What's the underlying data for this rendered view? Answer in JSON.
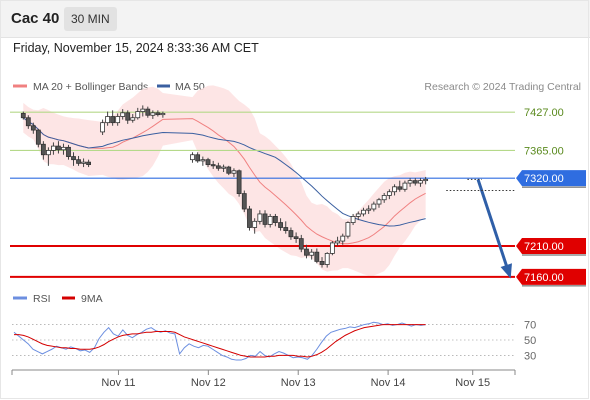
{
  "header": {
    "instrument": "Cac 40",
    "interval": "30 MIN",
    "datetime": "Friday, November 15, 2024 8:33:36 AM CET"
  },
  "colors": {
    "bollinger": "#f08080",
    "bollinger_fill": "#fde0e0",
    "ma50": "#3a5fa0",
    "resistance": "#b5d98a",
    "pivot": "#2f6de0",
    "support": "#e00000",
    "arrow": "#2f5fa8",
    "rsi": "#6c8fe0",
    "ma9": "#d40000"
  },
  "chart_data": [
    {
      "type": "candlestick",
      "legend": [
        {
          "label": "MA 20 + Bollinger Bands",
          "color": "#f08080"
        },
        {
          "label": "MA 50",
          "color": "#3a5fa0"
        }
      ],
      "source": "Research © 2024 Trading Central",
      "ylim": [
        7150,
        7450
      ],
      "x_ticks": [
        {
          "label": "Nov 11",
          "index": 19
        },
        {
          "label": "Nov 12",
          "index": 36
        },
        {
          "label": "Nov 13",
          "index": 53
        },
        {
          "label": "Nov 14",
          "index": 70
        },
        {
          "label": "Nov 15",
          "index": 86
        }
      ],
      "candles": [
        [
          7425,
          7428,
          7415,
          7418
        ],
        [
          7418,
          7422,
          7400,
          7405
        ],
        [
          7405,
          7410,
          7392,
          7398
        ],
        [
          7398,
          7400,
          7370,
          7375
        ],
        [
          7375,
          7380,
          7350,
          7358
        ],
        [
          7358,
          7370,
          7340,
          7365
        ],
        [
          7365,
          7378,
          7358,
          7372
        ],
        [
          7372,
          7380,
          7360,
          7366
        ],
        [
          7366,
          7376,
          7358,
          7370
        ],
        [
          7370,
          7374,
          7350,
          7355
        ],
        [
          7355,
          7362,
          7340,
          7350
        ],
        [
          7350,
          7356,
          7340,
          7344
        ],
        [
          7344,
          7352,
          7338,
          7346
        ],
        [
          7346,
          7350,
          7338,
          7342
        ],
        [
          7395,
          7415,
          7390,
          7410
        ],
        [
          7410,
          7428,
          7405,
          7420
        ],
        [
          7420,
          7430,
          7405,
          7410
        ],
        [
          7410,
          7425,
          7405,
          7420
        ],
        [
          7420,
          7432,
          7415,
          7426
        ],
        [
          7426,
          7430,
          7408,
          7414
        ],
        [
          7414,
          7424,
          7410,
          7418
        ],
        [
          7418,
          7434,
          7415,
          7428
        ],
        [
          7428,
          7438,
          7420,
          7432
        ],
        [
          7432,
          7436,
          7418,
          7422
        ],
        [
          7422,
          7430,
          7416,
          7426
        ],
        [
          7426,
          7430,
          7420,
          7423
        ],
        [
          7423,
          7428,
          7418,
          7425
        ],
        [
          7350,
          7362,
          7345,
          7358
        ],
        [
          7358,
          7362,
          7345,
          7348
        ],
        [
          7348,
          7355,
          7340,
          7350
        ],
        [
          7350,
          7353,
          7338,
          7342
        ],
        [
          7342,
          7348,
          7335,
          7340
        ],
        [
          7340,
          7345,
          7332,
          7336
        ],
        [
          7336,
          7342,
          7330,
          7338
        ],
        [
          7338,
          7340,
          7325,
          7328
        ],
        [
          7328,
          7336,
          7322,
          7332
        ],
        [
          7332,
          7334,
          7290,
          7295
        ],
        [
          7295,
          7300,
          7265,
          7270
        ],
        [
          7270,
          7275,
          7235,
          7240
        ],
        [
          7240,
          7255,
          7230,
          7250
        ],
        [
          7250,
          7268,
          7245,
          7262
        ],
        [
          7262,
          7268,
          7240,
          7245
        ],
        [
          7245,
          7262,
          7240,
          7258
        ],
        [
          7258,
          7262,
          7242,
          7248
        ],
        [
          7248,
          7255,
          7235,
          7240
        ],
        [
          7240,
          7250,
          7230,
          7235
        ],
        [
          7235,
          7240,
          7220,
          7225
        ],
        [
          7225,
          7232,
          7215,
          7222
        ],
        [
          7222,
          7228,
          7200,
          7205
        ],
        [
          7205,
          7212,
          7190,
          7195
        ],
        [
          7195,
          7205,
          7188,
          7200
        ],
        [
          7200,
          7206,
          7182,
          7185
        ],
        [
          7185,
          7192,
          7175,
          7180
        ],
        [
          7180,
          7200,
          7175,
          7198
        ],
        [
          7198,
          7218,
          7195,
          7215
        ],
        [
          7215,
          7225,
          7210,
          7218
        ],
        [
          7218,
          7230,
          7212,
          7226
        ],
        [
          7226,
          7250,
          7222,
          7248
        ],
        [
          7248,
          7262,
          7244,
          7258
        ],
        [
          7258,
          7266,
          7252,
          7262
        ],
        [
          7262,
          7272,
          7258,
          7268
        ],
        [
          7268,
          7276,
          7262,
          7270
        ],
        [
          7270,
          7282,
          7266,
          7278
        ],
        [
          7278,
          7288,
          7272,
          7285
        ],
        [
          7285,
          7296,
          7280,
          7292
        ],
        [
          7292,
          7302,
          7286,
          7298
        ],
        [
          7298,
          7310,
          7292,
          7306
        ],
        [
          7306,
          7316,
          7298,
          7302
        ],
        [
          7302,
          7316,
          7298,
          7312
        ],
        [
          7312,
          7320,
          7306,
          7316
        ],
        [
          7316,
          7320,
          7308,
          7312
        ],
        [
          7312,
          7320,
          7306,
          7316
        ],
        [
          7316,
          7322,
          7310,
          7318
        ]
      ],
      "levels": [
        {
          "label": "7427.00",
          "value": 7427,
          "kind": "resistance"
        },
        {
          "label": "7365.00",
          "value": 7365,
          "kind": "resistance"
        },
        {
          "label": "7320.00",
          "value": 7320,
          "kind": "pivot"
        },
        {
          "label": "7210.00",
          "value": 7210,
          "kind": "support"
        },
        {
          "label": "7160.00",
          "value": 7160,
          "kind": "support"
        }
      ],
      "projection": {
        "from_index": 87,
        "from_value": 7318,
        "to_index": 93,
        "to_value": 7162,
        "dotted_to_index": 94,
        "dotted_value": 7300
      }
    },
    {
      "type": "line",
      "legend": [
        {
          "label": "RSI",
          "color": "#6c8fe0"
        },
        {
          "label": "9MA",
          "color": "#d40000"
        }
      ],
      "ylim": [
        15,
        85
      ],
      "y_ticks": [
        "70",
        "50",
        "30"
      ],
      "series": [
        {
          "name": "RSI",
          "values": [
            60,
            55,
            50,
            45,
            38,
            35,
            32,
            35,
            38,
            42,
            40,
            38,
            41,
            39,
            36,
            37,
            34,
            40,
            52,
            60,
            66,
            58,
            55,
            63,
            56,
            53,
            57,
            60,
            64,
            66,
            62,
            60,
            62,
            59,
            58,
            32,
            40,
            45,
            42,
            40,
            43,
            42,
            38,
            34,
            30,
            28,
            25,
            24,
            24,
            26,
            30,
            29,
            35,
            30,
            28,
            32,
            35,
            33,
            30,
            27,
            28,
            27,
            25,
            30,
            38,
            47,
            55,
            60,
            62,
            64,
            65,
            67,
            66,
            68,
            70,
            71,
            73,
            72,
            70,
            71,
            69,
            70,
            72,
            70,
            68,
            70,
            69,
            70
          ]
        },
        {
          "name": "9MA",
          "values": [
            57,
            57,
            56,
            54,
            51,
            48,
            45,
            43,
            42,
            41,
            40,
            40,
            39,
            39,
            38,
            38,
            38,
            39,
            41,
            44,
            48,
            51,
            54,
            56,
            57,
            58,
            58,
            59,
            60,
            60,
            61,
            61,
            61,
            61,
            60,
            57,
            54,
            52,
            50,
            48,
            46,
            44,
            42,
            40,
            38,
            36,
            34,
            32,
            30,
            29,
            28,
            28,
            28,
            28,
            29,
            29,
            30,
            30,
            30,
            30,
            29,
            29,
            28,
            29,
            31,
            34,
            38,
            43,
            48,
            52,
            56,
            59,
            62,
            64,
            66,
            67,
            68,
            69,
            70,
            70,
            70,
            70,
            70,
            70,
            70,
            70,
            70,
            70
          ]
        }
      ]
    }
  ]
}
